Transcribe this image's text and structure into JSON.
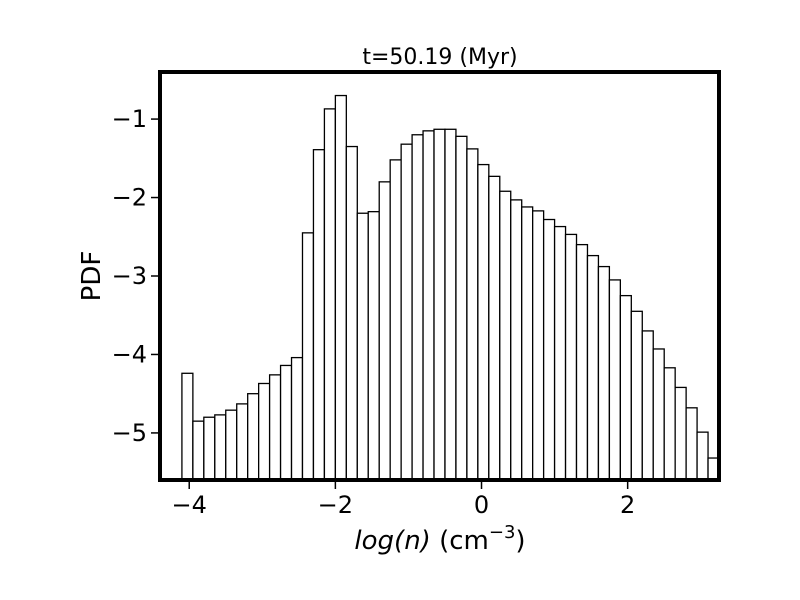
{
  "chart_data": {
    "type": "bar",
    "title": "t=50.19 (Myr)",
    "xlabel": {
      "main": "log(n)",
      "unit": " (cm",
      "exp": "−3",
      "close": ")"
    },
    "ylabel": "PDF",
    "xlim": [
      -4.4,
      3.25
    ],
    "ylim": [
      -5.6,
      -0.4
    ],
    "xticks": [
      {
        "value": -4,
        "label": "−4"
      },
      {
        "value": -2,
        "label": "−2"
      },
      {
        "value": 0,
        "label": "0"
      },
      {
        "value": 2,
        "label": "2"
      }
    ],
    "yticks": [
      {
        "value": -1,
        "label": "−1"
      },
      {
        "value": -2,
        "label": "−2"
      },
      {
        "value": -3,
        "label": "−3"
      },
      {
        "value": -4,
        "label": "−4"
      },
      {
        "value": -5,
        "label": "−5"
      }
    ],
    "bin_start": -4.1,
    "bin_width": 0.15,
    "values": [
      -4.24,
      -4.85,
      -4.8,
      -4.77,
      -4.71,
      -4.63,
      -4.5,
      -4.37,
      -4.26,
      -4.14,
      -4.04,
      -2.45,
      -1.39,
      -0.87,
      -0.7,
      -1.35,
      -2.2,
      -2.18,
      -1.8,
      -1.52,
      -1.32,
      -1.2,
      -1.15,
      -1.13,
      -1.13,
      -1.22,
      -1.38,
      -1.58,
      -1.73,
      -1.92,
      -2.03,
      -2.12,
      -2.17,
      -2.28,
      -2.37,
      -2.47,
      -2.6,
      -2.74,
      -2.88,
      -3.05,
      -3.25,
      -3.45,
      -3.7,
      -3.93,
      -4.17,
      -4.42,
      -4.68,
      -4.99,
      -5.32
    ],
    "bar_fill": "#ffffff",
    "bar_edge": "#000000",
    "grid": false,
    "legend": "none"
  }
}
